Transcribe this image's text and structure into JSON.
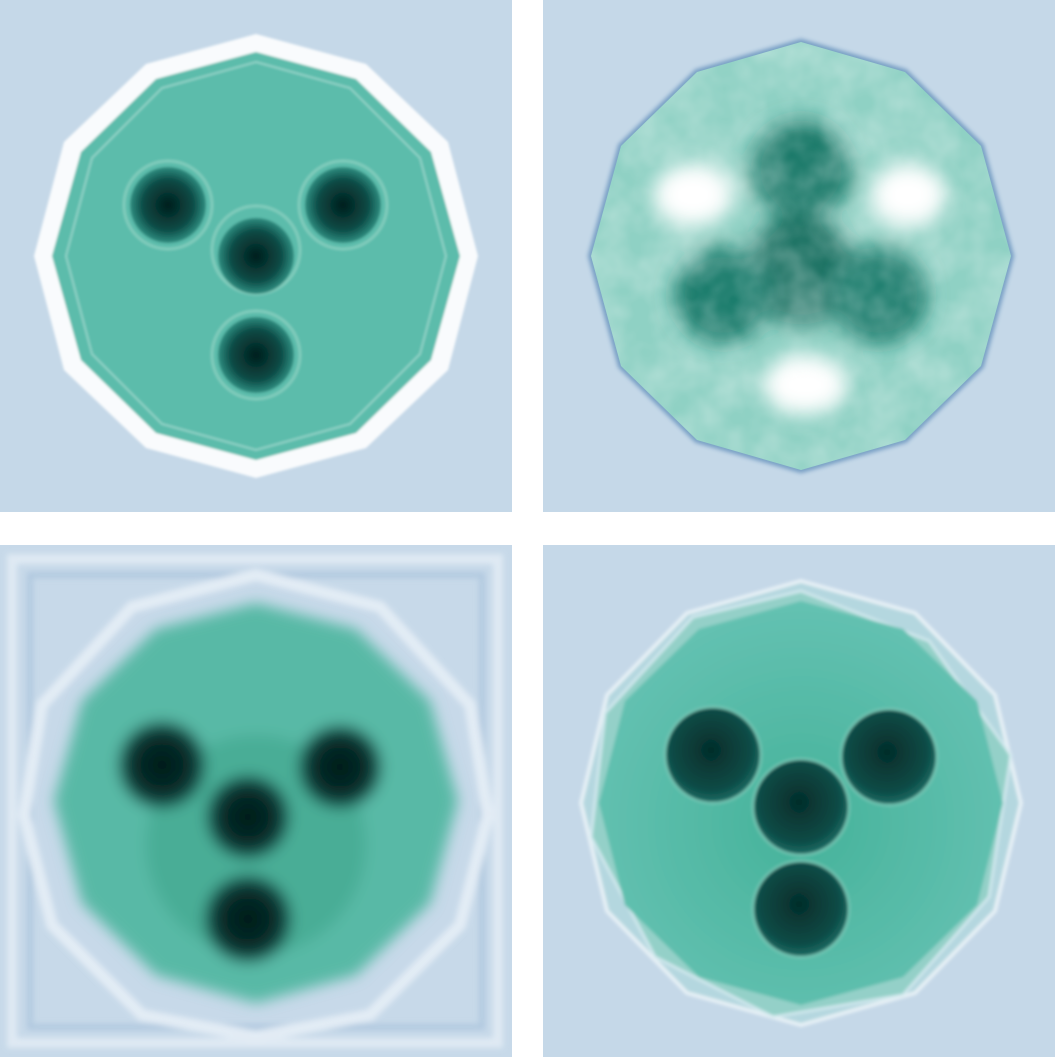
{
  "figure": {
    "panel_count": 4,
    "colors": {
      "background": "#c5d8e8",
      "phantom_fill": "#5dbfae",
      "phantom_edge": "#3e9f95",
      "dark_disc": "#063f3c",
      "bright_ring": "#ffffff"
    },
    "panels": [
      {
        "position": "top-left",
        "style": "ringing-reconstruction"
      },
      {
        "position": "top-right",
        "style": "noisy-reconstruction"
      },
      {
        "position": "bottom-left",
        "style": "blurred-reconstruction"
      },
      {
        "position": "bottom-right",
        "style": "sharp-reconstruction"
      }
    ]
  }
}
